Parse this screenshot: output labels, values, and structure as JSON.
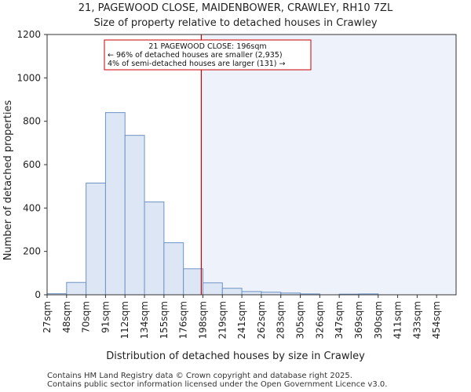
{
  "chart_data": {
    "type": "bar",
    "title": "21, PAGEWOOD CLOSE, MAIDENBOWER, CRAWLEY, RH10 7ZL",
    "subtitle": "Size of property relative to detached houses in Crawley",
    "xlabel": "Distribution of detached houses by size in Crawley",
    "ylabel": "Number of detached properties",
    "categories": [
      "27sqm",
      "48sqm",
      "70sqm",
      "91sqm",
      "112sqm",
      "134sqm",
      "155sqm",
      "176sqm",
      "198sqm",
      "219sqm",
      "241sqm",
      "262sqm",
      "283sqm",
      "305sqm",
      "326sqm",
      "347sqm",
      "369sqm",
      "390sqm",
      "411sqm",
      "433sqm",
      "454sqm"
    ],
    "values": [
      5,
      57,
      515,
      840,
      735,
      428,
      240,
      120,
      55,
      30,
      15,
      12,
      8,
      4,
      0,
      3,
      4,
      0,
      0,
      0,
      0
    ],
    "ylim": [
      0,
      1200
    ],
    "yticks": [
      0,
      200,
      400,
      600,
      800,
      1000,
      1200
    ],
    "property_line": {
      "value": 196,
      "label": "196sqm"
    },
    "annotation": {
      "line1": "21 PAGEWOOD CLOSE: 196sqm",
      "line2": "← 96% of detached houses are smaller (2,935)",
      "line3": "4% of semi-detached houses are larger (131) →"
    },
    "colors": {
      "bar_fill": "#dce6f4",
      "bar_stroke": "#6f93c6",
      "highlight_bg": "#eef2fb",
      "marker": "#cc0000"
    }
  },
  "footer": {
    "line1": "Contains HM Land Registry data © Crown copyright and database right 2025.",
    "line2": "Contains public sector information licensed under the Open Government Licence v3.0."
  }
}
